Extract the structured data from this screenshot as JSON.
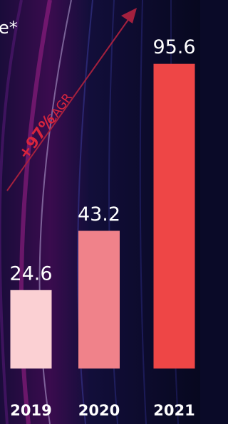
{
  "chart_data": {
    "type": "bar",
    "title": "e*",
    "annotation": {
      "main": "+97%",
      "sub": "CAGR"
    },
    "categories": [
      "2019",
      "2020",
      "2021"
    ],
    "values": [
      24.6,
      43.2,
      95.6
    ],
    "colors": [
      "#fbd0d3",
      "#f0828a",
      "#ee4646"
    ],
    "ylim": [
      0,
      100
    ]
  }
}
